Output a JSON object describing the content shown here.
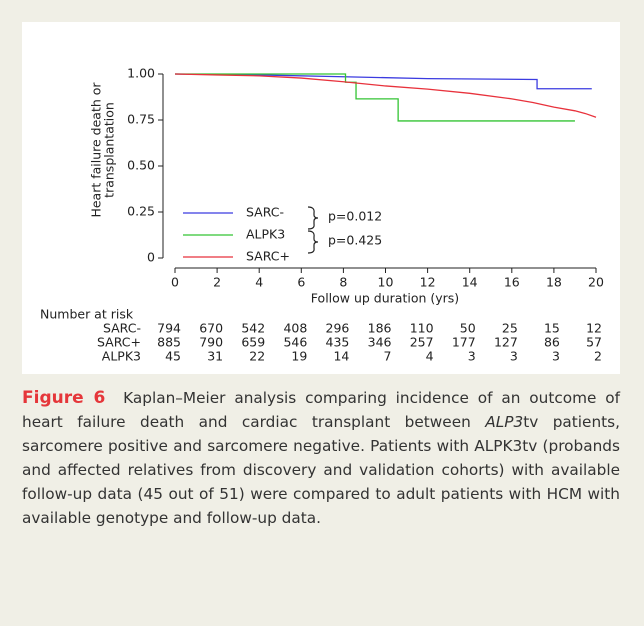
{
  "chart_data": {
    "type": "line",
    "ylabel": [
      "Heart failure death or",
      "transplantation"
    ],
    "xlabel": "Follow up duration (yrs)",
    "xlim": [
      0,
      20
    ],
    "xticks": [
      0,
      2,
      4,
      6,
      8,
      10,
      12,
      14,
      16,
      18,
      20
    ],
    "ylim": [
      0,
      1
    ],
    "yticks": [
      0,
      0.25,
      {
        "value": 0.5,
        "label": "0.50"
      },
      0.75,
      {
        "value": 1,
        "label": "1.00"
      }
    ],
    "series": [
      {
        "name": "SARC-",
        "color": "#3b3be0",
        "x": [
          0,
          4,
          8,
          12,
          17.2,
          17.2,
          19.8
        ],
        "values": [
          1,
          0.995,
          0.985,
          0.975,
          0.97,
          0.92,
          0.92
        ]
      },
      {
        "name": "ALPK3",
        "color": "#33c433",
        "x": [
          0,
          8.1,
          8.1,
          8.6,
          8.6,
          10.6,
          10.6,
          19
        ],
        "values": [
          1,
          1,
          0.955,
          0.955,
          0.865,
          0.865,
          0.745,
          0.745
        ]
      },
      {
        "name": "SARC+",
        "color": "#e8323c",
        "x": [
          0,
          2,
          4,
          6,
          8,
          10,
          12,
          14,
          16,
          17,
          18,
          19,
          19.5,
          20
        ],
        "values": [
          1,
          0.995,
          0.99,
          0.978,
          0.958,
          0.935,
          0.918,
          0.895,
          0.865,
          0.845,
          0.82,
          0.8,
          0.785,
          0.765
        ]
      }
    ],
    "annotations": [
      "p=0.012",
      "p=0.425"
    ]
  },
  "risk_table": {
    "title": "Number at risk",
    "rows": [
      {
        "name": "SARC-",
        "values": [
          794,
          670,
          542,
          408,
          296,
          186,
          110,
          50,
          25,
          15,
          12
        ]
      },
      {
        "name": "SARC+",
        "values": [
          885,
          790,
          659,
          546,
          435,
          346,
          257,
          177,
          127,
          86,
          57
        ]
      },
      {
        "name": "ALPK3",
        "values": [
          45,
          31,
          22,
          19,
          14,
          7,
          4,
          3,
          3,
          3,
          2
        ]
      }
    ]
  },
  "caption": {
    "label": "Figure 6",
    "parts": [
      "Kaplan–Meier analysis comparing incidence of an outcome of heart failure death and cardiac transplant between ",
      "ALP3",
      "tv patients, sarcomere positive and sarcomere negative. Patients with ALPK3tv (probands and affected relatives from discovery and validation cohorts) with available follow-up data (45 out of 51) were compared to adult patients with HCM with available genotype and follow-up data."
    ]
  }
}
